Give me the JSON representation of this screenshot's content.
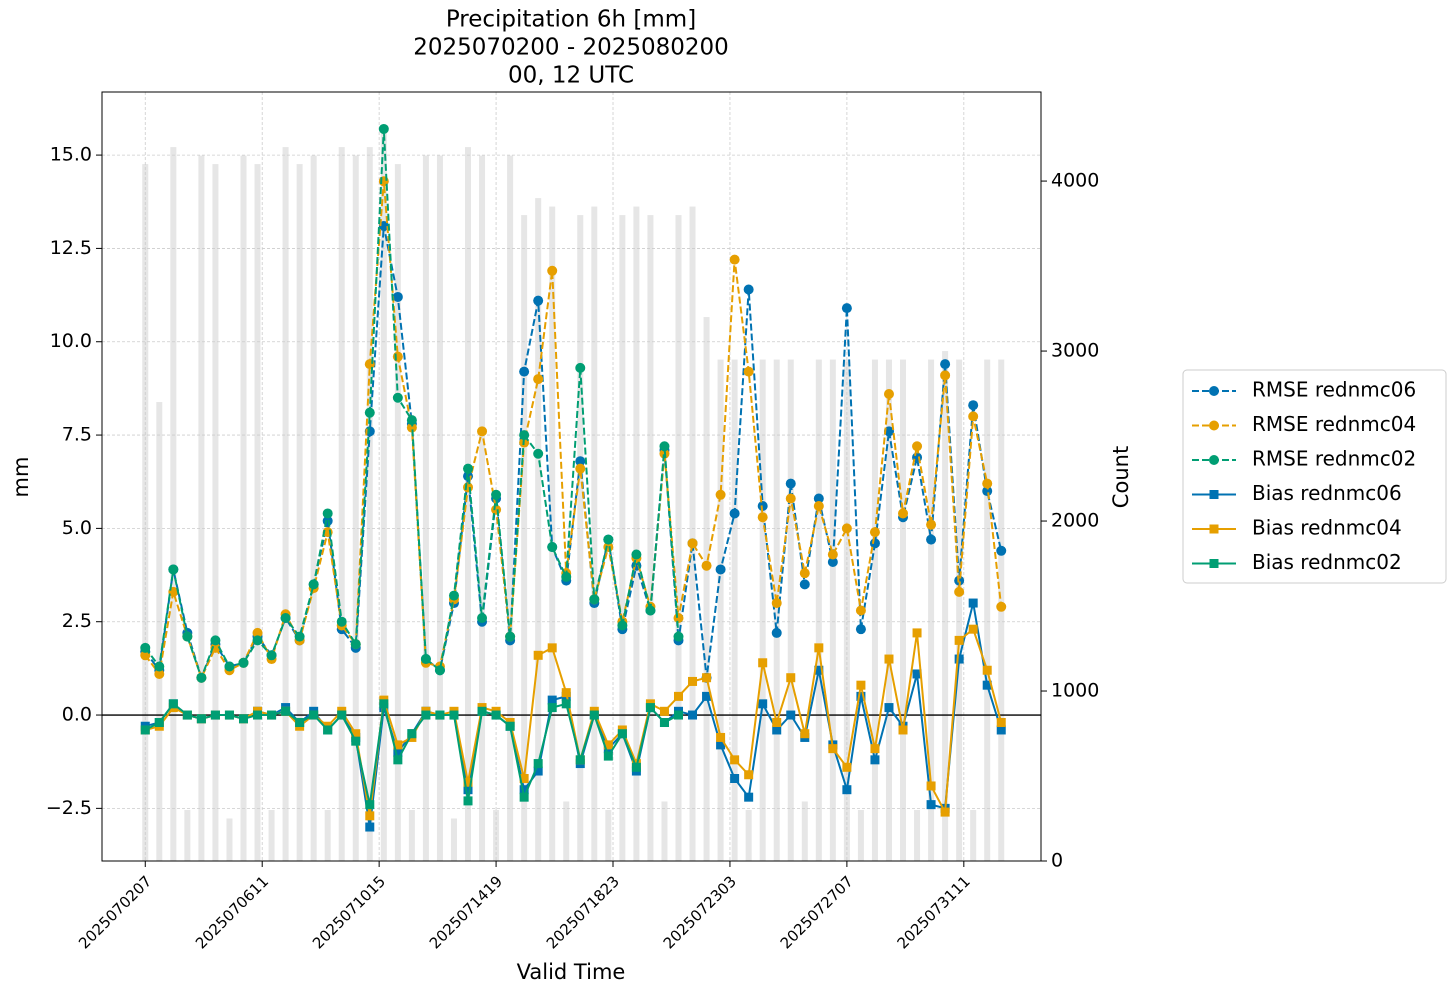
{
  "chart_data": {
    "type": "line",
    "title": [
      "Precipitation 6h [mm]",
      "2025070200 - 2025080200",
      "00, 12 UTC"
    ],
    "x_label": "Valid Time",
    "y_label": "mm",
    "y2_label": "Count",
    "x": [
      "2025070207",
      "2025070219",
      "2025070307",
      "2025070319",
      "2025070407",
      "2025070419",
      "2025070507",
      "2025070519",
      "2025070607",
      "2025070619",
      "2025070707",
      "2025070719",
      "2025070807",
      "2025070819",
      "2025070907",
      "2025070919",
      "2025071007",
      "2025071019",
      "2025071107",
      "2025071119",
      "2025071207",
      "2025071219",
      "2025071307",
      "2025071319",
      "2025071407",
      "2025071419",
      "2025071507",
      "2025071519",
      "2025071607",
      "2025071619",
      "2025071707",
      "2025071719",
      "2025071807",
      "2025071819",
      "2025071907",
      "2025071919",
      "2025072007",
      "2025072019",
      "2025072107",
      "2025072119",
      "2025072207",
      "2025072219",
      "2025072307",
      "2025072319",
      "2025072407",
      "2025072419",
      "2025072507",
      "2025072519",
      "2025072607",
      "2025072619",
      "2025072707",
      "2025072719",
      "2025072807",
      "2025072819",
      "2025072907",
      "2025072919",
      "2025073007",
      "2025073019",
      "2025073107",
      "2025073119",
      "2025080107",
      "2025080119"
    ],
    "xlim": [
      "2025063018",
      "2025080305"
    ],
    "xticks": [
      "2025070207",
      "2025070611",
      "2025071015",
      "2025071419",
      "2025071823",
      "2025072303",
      "2025072707",
      "2025073111"
    ],
    "ylim": [
      -3.91,
      16.69
    ],
    "yticks": [
      {
        "value": -2.5,
        "label": "−2.5"
      },
      {
        "value": 0,
        "label": "0.0"
      },
      {
        "value": 2.5,
        "label": "2.5"
      },
      {
        "value": 5,
        "label": "5.0"
      },
      {
        "value": 7.5,
        "label": "7.5"
      },
      {
        "value": 10,
        "label": "10.0"
      },
      {
        "value": 12.5,
        "label": "12.5"
      },
      {
        "value": 15,
        "label": "15.0"
      }
    ],
    "y2lim": [
      0,
      4524
    ],
    "y2ticks": [
      0,
      1000,
      2000,
      3000,
      4000
    ],
    "grid": true,
    "legend": "outside right",
    "count_bars": {
      "axis": "y2",
      "color": "#e6e6e6",
      "values": [
        4100,
        2700,
        4200,
        300,
        4150,
        4100,
        250,
        4150,
        4100,
        300,
        4200,
        4100,
        4150,
        300,
        4200,
        4150,
        4200,
        4300,
        4100,
        300,
        4150,
        4150,
        250,
        4200,
        4150,
        300,
        4150,
        3800,
        3900,
        3850,
        350,
        3800,
        3850,
        300,
        3800,
        3850,
        3800,
        350,
        3800,
        3850,
        3200,
        2950,
        2950,
        300,
        2950,
        2950,
        2950,
        350,
        2950,
        2950,
        2950,
        300,
        2950,
        2950,
        2950,
        300,
        2950,
        3000,
        2950,
        300,
        2950,
        2950
      ]
    },
    "series": [
      {
        "name": "RMSE rednmc06",
        "color": "#0072b2",
        "style": "dashed",
        "marker": "circle",
        "values": [
          1.7,
          1.2,
          3.9,
          2.2,
          1.0,
          1.9,
          1.3,
          1.4,
          2.1,
          1.6,
          2.6,
          2.0,
          3.5,
          5.2,
          2.3,
          1.8,
          7.6,
          13.1,
          11.2,
          7.8,
          1.5,
          1.2,
          3.0,
          6.4,
          2.5,
          5.8,
          2.0,
          9.2,
          11.1,
          4.5,
          3.6,
          6.8,
          3.0,
          4.7,
          2.3,
          4.0,
          2.8,
          7.1,
          2.0,
          4.6,
          1.0,
          3.9,
          5.4,
          11.4,
          5.6,
          2.2,
          6.2,
          3.5,
          5.8,
          4.1,
          10.9,
          2.3,
          4.6,
          7.6,
          5.3,
          6.9,
          4.7,
          9.4,
          3.6,
          8.3,
          6.0,
          4.4
        ]
      },
      {
        "name": "RMSE rednmc04",
        "color": "#e69f00",
        "style": "dashed",
        "marker": "circle",
        "values": [
          1.6,
          1.1,
          3.3,
          2.1,
          1.0,
          1.8,
          1.2,
          1.4,
          2.2,
          1.5,
          2.7,
          2.0,
          3.4,
          4.9,
          2.4,
          1.9,
          9.4,
          14.3,
          9.6,
          7.7,
          1.4,
          1.3,
          3.1,
          6.1,
          7.6,
          5.5,
          2.1,
          7.3,
          9.0,
          11.9,
          3.8,
          6.6,
          3.1,
          4.5,
          2.5,
          4.2,
          2.9,
          7.0,
          2.6,
          4.6,
          4.0,
          5.9,
          12.2,
          9.2,
          5.3,
          3.0,
          5.8,
          3.8,
          5.6,
          4.3,
          5.0,
          2.8,
          4.9,
          8.6,
          5.4,
          7.2,
          5.1,
          9.1,
          3.3,
          8.0,
          6.2,
          2.9
        ]
      },
      {
        "name": "RMSE rednmc02",
        "color": "#009e73",
        "style": "dashed",
        "marker": "circle",
        "values": [
          1.8,
          1.3,
          3.9,
          2.1,
          1.0,
          2.0,
          1.3,
          1.4,
          2.0,
          1.6,
          2.6,
          2.1,
          3.5,
          5.4,
          2.5,
          1.9,
          8.1,
          15.7,
          8.5,
          7.9,
          1.5,
          1.2,
          3.2,
          6.6,
          2.6,
          5.9,
          2.1,
          7.5,
          7.0,
          4.5,
          3.7,
          9.3,
          3.1,
          4.7,
          2.4,
          4.3,
          2.8,
          7.2,
          2.1,
          null,
          null,
          null,
          null,
          null,
          null,
          null,
          null,
          null,
          null,
          null,
          null,
          null,
          null,
          null,
          null,
          null,
          null,
          null,
          null,
          null,
          null,
          null
        ]
      },
      {
        "name": "Bias rednmc06",
        "color": "#0072b2",
        "style": "solid",
        "marker": "square",
        "values": [
          -0.3,
          -0.2,
          0.3,
          0.0,
          -0.1,
          0.0,
          0.0,
          -0.1,
          0.1,
          0.0,
          0.2,
          -0.2,
          0.1,
          -0.4,
          0.0,
          -0.6,
          -3.0,
          0.2,
          -1.0,
          -0.5,
          0.1,
          0.0,
          0.0,
          -2.0,
          0.1,
          0.0,
          -0.3,
          -2.0,
          -1.5,
          0.4,
          0.5,
          -1.3,
          0.0,
          -0.9,
          -0.5,
          -1.5,
          0.2,
          -0.2,
          0.1,
          0.0,
          0.5,
          -0.8,
          -1.7,
          -2.2,
          0.3,
          -0.4,
          0.0,
          -0.6,
          1.2,
          -0.8,
          -2.0,
          0.5,
          -1.2,
          0.2,
          -0.3,
          1.1,
          -2.4,
          -2.5,
          1.5,
          3.0,
          0.8,
          -0.4
        ]
      },
      {
        "name": "Bias rednmc04",
        "color": "#e69f00",
        "style": "solid",
        "marker": "square",
        "values": [
          -0.4,
          -0.3,
          0.2,
          0.0,
          -0.1,
          0.0,
          0.0,
          -0.1,
          0.1,
          0.0,
          0.1,
          -0.3,
          0.0,
          -0.3,
          0.1,
          -0.5,
          -2.7,
          0.4,
          -0.8,
          -0.6,
          0.1,
          0.0,
          0.1,
          -1.8,
          0.2,
          0.1,
          -0.2,
          -1.7,
          1.6,
          1.8,
          0.6,
          -1.2,
          0.1,
          -0.8,
          -0.4,
          -1.3,
          0.3,
          0.1,
          0.5,
          0.9,
          1.0,
          -0.6,
          -1.2,
          -1.6,
          1.4,
          -0.2,
          1.0,
          -0.5,
          1.8,
          -0.9,
          -1.4,
          0.8,
          -0.9,
          1.5,
          -0.4,
          2.2,
          -1.9,
          -2.6,
          2.0,
          2.3,
          1.2,
          -0.2
        ]
      },
      {
        "name": "Bias rednmc02",
        "color": "#009e73",
        "style": "solid",
        "marker": "square",
        "values": [
          -0.4,
          -0.2,
          0.3,
          0.0,
          -0.1,
          0.0,
          0.0,
          -0.1,
          0.0,
          0.0,
          0.1,
          -0.2,
          0.0,
          -0.4,
          0.0,
          -0.7,
          -2.4,
          0.3,
          -1.2,
          -0.5,
          0.0,
          0.0,
          0.0,
          -2.3,
          0.1,
          0.0,
          -0.3,
          -2.2,
          -1.3,
          0.2,
          0.3,
          -1.2,
          0.0,
          -1.1,
          -0.5,
          -1.4,
          0.2,
          -0.2,
          0.0,
          null,
          null,
          null,
          null,
          null,
          null,
          null,
          null,
          null,
          null,
          null,
          null,
          null,
          null,
          null,
          null,
          null,
          null,
          null,
          null,
          null,
          null,
          null
        ]
      }
    ]
  }
}
